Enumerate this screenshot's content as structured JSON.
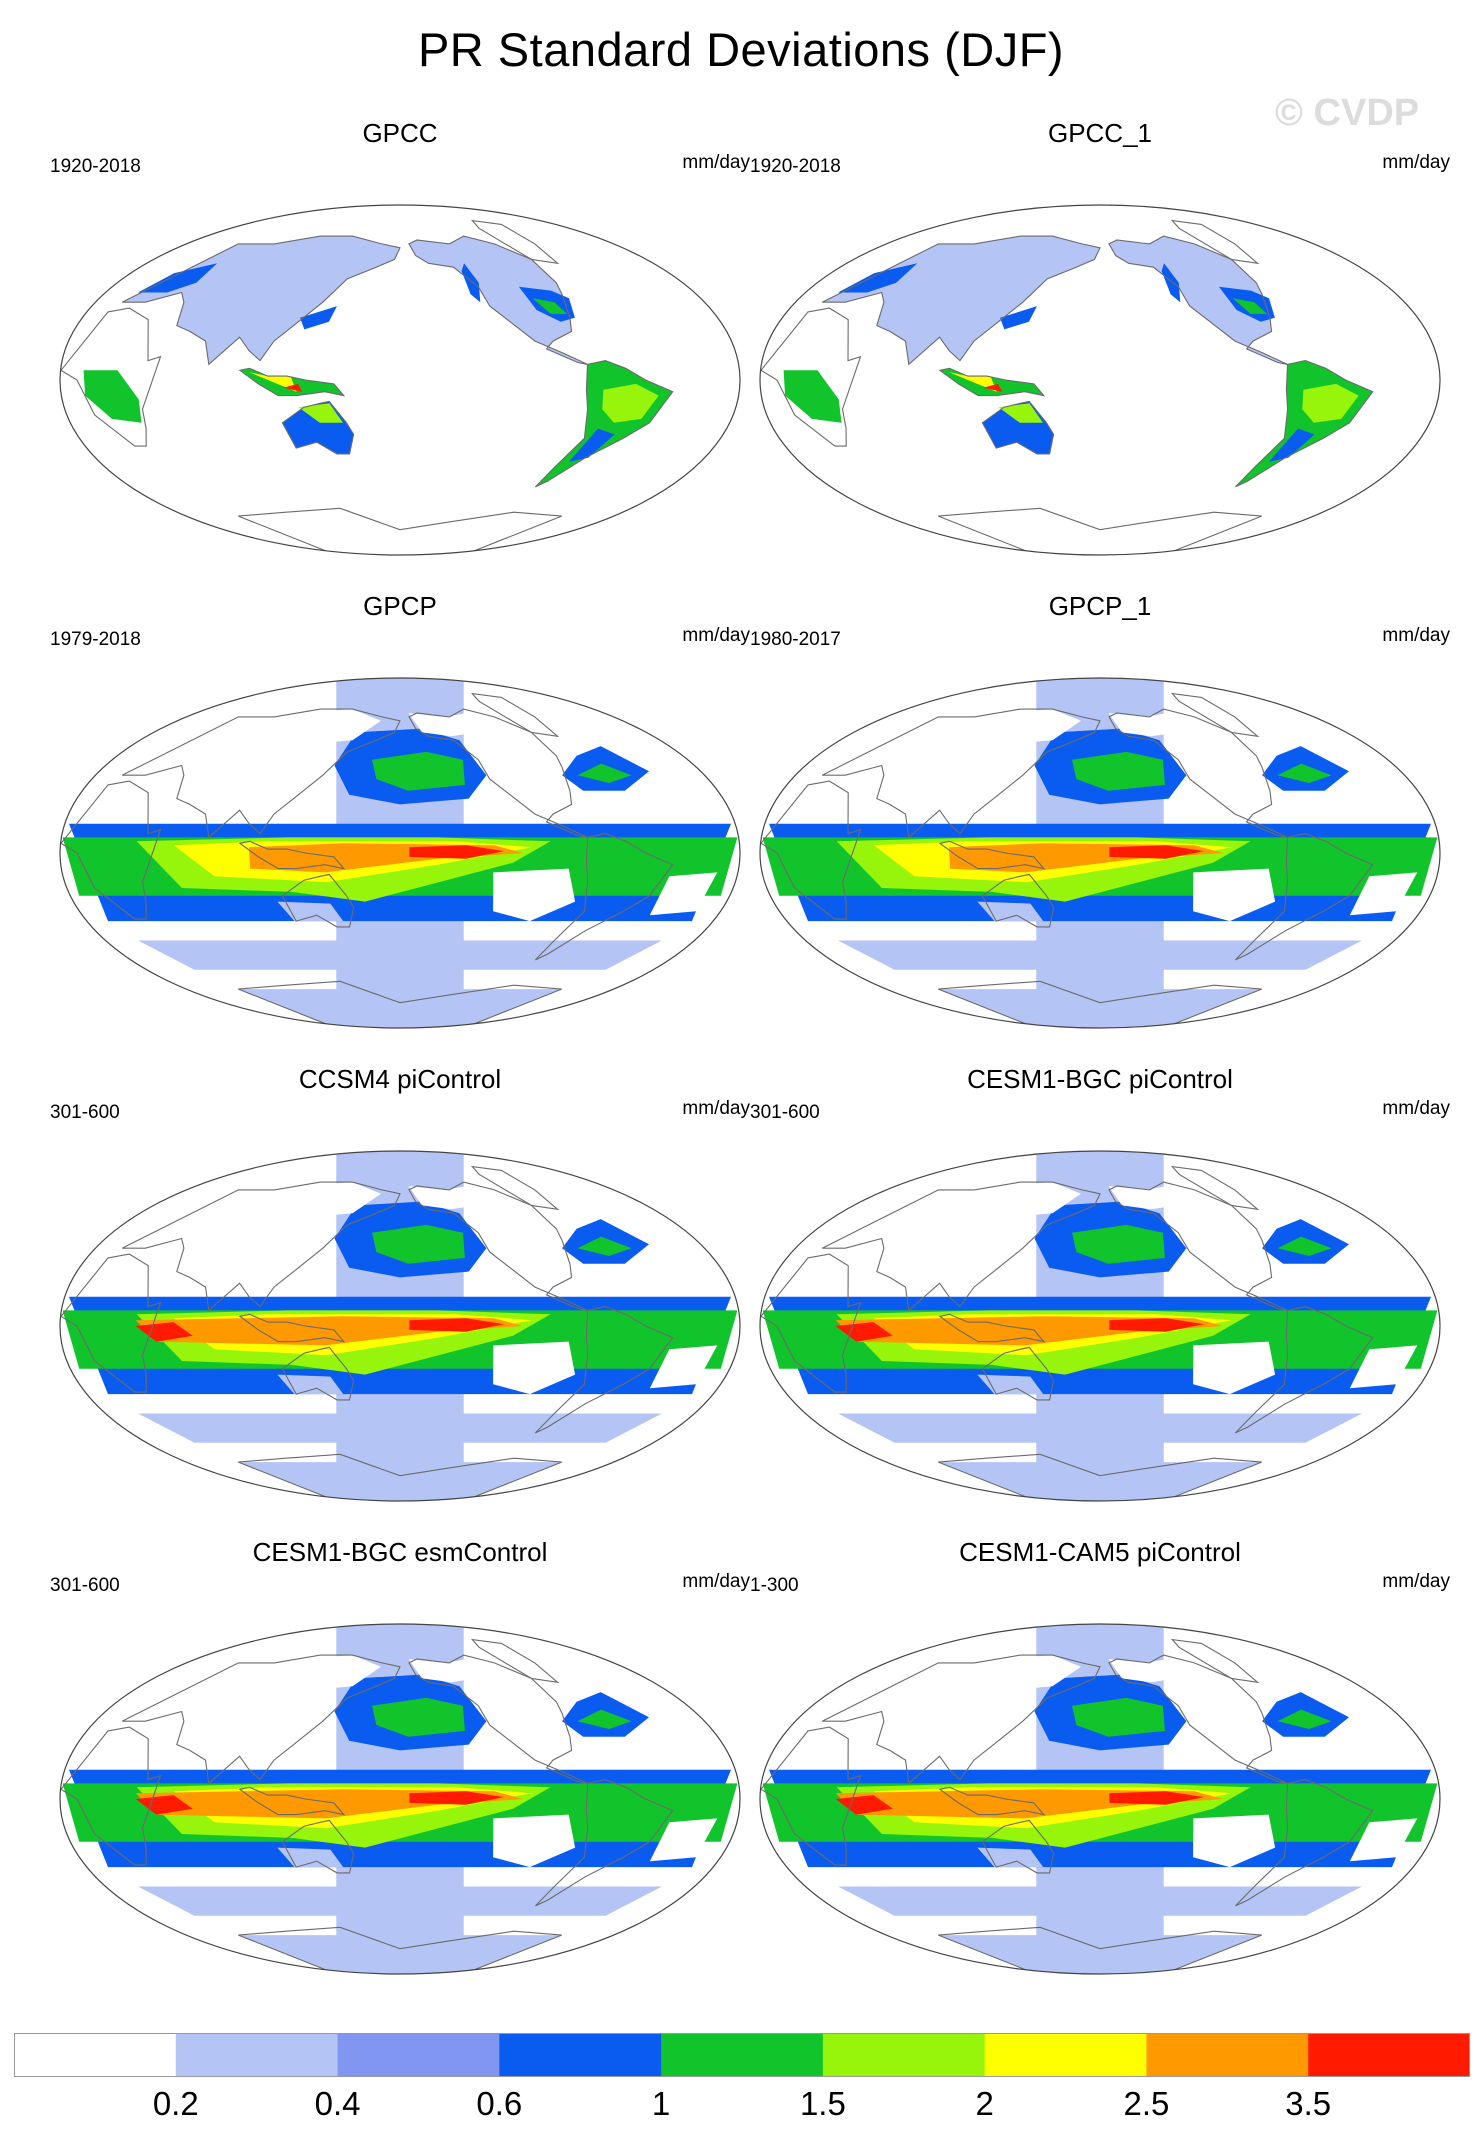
{
  "title": "PR Standard Deviations (DJF)",
  "watermark": "© CVDP",
  "units": "mm/day",
  "colors": [
    "#ffffff",
    "#b4c4f5",
    "#8196f0",
    "#0a5cf0",
    "#11c42c",
    "#96f50a",
    "#ffff00",
    "#ff9900",
    "#ff1a00"
  ],
  "colorbar": {
    "colors": [
      "#ffffff",
      "#b4c4f5",
      "#8196f0",
      "#0a5cf0",
      "#11c42c",
      "#96f50a",
      "#ffff00",
      "#ff9900",
      "#ff1a00"
    ],
    "labels": [
      "0.2",
      "0.4",
      "0.6",
      "1",
      "1.5",
      "2",
      "2.5",
      "3.5"
    ]
  },
  "panels": [
    {
      "title": "GPCC",
      "period": "1920-2018",
      "type": "land"
    },
    {
      "title": "GPCC_1",
      "period": "1920-2018",
      "type": "land"
    },
    {
      "title": "GPCP",
      "period": "1979-2018",
      "type": "obs"
    },
    {
      "title": "GPCP_1",
      "period": "1980-2017",
      "type": "obs"
    },
    {
      "title": "CCSM4 piControl",
      "period": "301-600",
      "type": "model"
    },
    {
      "title": "CESM1-BGC piControl",
      "period": "301-600",
      "type": "model"
    },
    {
      "title": "CESM1-BGC esmControl",
      "period": "301-600",
      "type": "model"
    },
    {
      "title": "CESM1-CAM5 piControl",
      "period": "1-300",
      "type": "model"
    }
  ]
}
